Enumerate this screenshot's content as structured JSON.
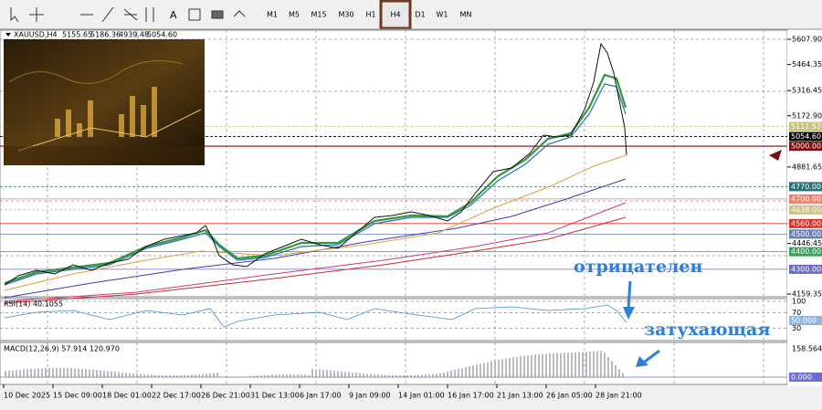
{
  "toolbar": {
    "timeframes": [
      "M1",
      "M5",
      "M15",
      "M30",
      "H1",
      "H4",
      "D1",
      "W1",
      "MN"
    ],
    "active": "H4"
  },
  "chart": {
    "symbol": "XAUUSD,H4",
    "ohlc": [
      "5155.65",
      "5186.36",
      "4939.48",
      "5054.60"
    ],
    "price_labels": [
      "5607.90",
      "5464.35",
      "5316.45",
      "5172.90",
      "4881.65",
      "4446.45",
      "4159.35"
    ],
    "levels": [
      {
        "label": "5111.52",
        "color": "#c8c27a"
      },
      {
        "label": "5054.60",
        "color": "#000000"
      },
      {
        "label": "5000.00",
        "color": "#7a0d0d"
      },
      {
        "label": "4770.00",
        "color": "#2f6f73"
      },
      {
        "label": "4700.00",
        "color": "#e8806a"
      },
      {
        "label": "4638.00",
        "color": "#c9c08a"
      },
      {
        "label": "4560.00",
        "color": "#d9342b"
      },
      {
        "label": "4500.00",
        "color": "#6a7fb5"
      },
      {
        "label": "4400.00",
        "color": "#3aa05a"
      },
      {
        "label": "4300.00",
        "color": "#6b6bb8"
      }
    ]
  },
  "rsi": {
    "title": "RSI(14) 40.1055",
    "axis": [
      "100",
      "70",
      "30"
    ],
    "level": "50.000"
  },
  "macd": {
    "title": "MACD(12,26,9) 57.914 120.970",
    "axis": [
      "158.564"
    ],
    "zero": "0.000"
  },
  "time_axis": [
    "10 Dec 2025",
    "15 Dec 09:00",
    "18 Dec 01:00",
    "22 Dec 17:00",
    "26 Dec 21:00",
    "31 Dec 13:00",
    "6 Jan 17:00",
    "9 Jan 09:00",
    "14 Jan 01:00",
    "16 Jan 17:00",
    "21 Jan 13:00",
    "26 Jan 05:00",
    "28 Jan 21:00"
  ],
  "annotations": [
    "отрицателен",
    "затухающая"
  ]
}
